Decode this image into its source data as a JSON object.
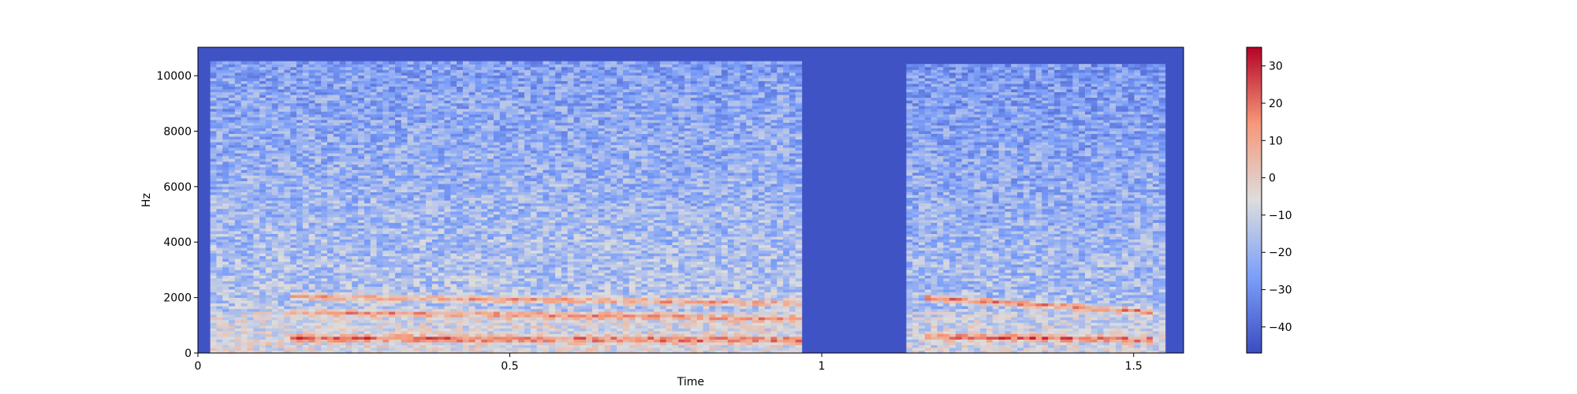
{
  "chart_data": {
    "type": "heatmap",
    "title": "",
    "xlabel": "Time",
    "ylabel": "Hz",
    "xlim": [
      0,
      1.58
    ],
    "ylim": [
      0,
      11025
    ],
    "xticks": [
      {
        "value": 0,
        "label": "0"
      },
      {
        "value": 0.5,
        "label": "0.5"
      },
      {
        "value": 1,
        "label": "1"
      },
      {
        "value": 1.5,
        "label": "1.5"
      }
    ],
    "yticks": [
      {
        "value": 0,
        "label": "0"
      },
      {
        "value": 2000,
        "label": "2000"
      },
      {
        "value": 4000,
        "label": "4000"
      },
      {
        "value": 6000,
        "label": "6000"
      },
      {
        "value": 8000,
        "label": "8000"
      },
      {
        "value": 10000,
        "label": "10000"
      }
    ],
    "colormap": "coolwarm",
    "colorbar": {
      "range": [
        -47,
        35
      ],
      "ticks": [
        {
          "value": 30,
          "label": "30"
        },
        {
          "value": 20,
          "label": "20"
        },
        {
          "value": 10,
          "label": "10"
        },
        {
          "value": 0,
          "label": "0"
        },
        {
          "value": -10,
          "label": "−10"
        },
        {
          "value": -20,
          "label": "−20"
        },
        {
          "value": -30,
          "label": "−30"
        },
        {
          "value": -40,
          "label": "−40"
        }
      ]
    },
    "silent_intervals": [
      [
        0.0,
        0.02
      ],
      [
        0.97,
        1.14
      ],
      [
        1.55,
        1.58
      ]
    ],
    "energy_regions": [
      {
        "t_start": 0.02,
        "t_end": 0.97,
        "f_max": 10500,
        "level": -12
      },
      {
        "t_start": 1.14,
        "t_end": 1.55,
        "f_max": 10400,
        "level": -14
      }
    ],
    "harmonics": [
      {
        "t_start": 0.15,
        "t_end": 0.97,
        "f_start": 550,
        "f_end": 480,
        "level": 22
      },
      {
        "t_start": 0.15,
        "t_end": 0.97,
        "f_start": 1500,
        "f_end": 1250,
        "level": 14
      },
      {
        "t_start": 0.15,
        "t_end": 0.97,
        "f_start": 2050,
        "f_end": 1800,
        "level": 12
      },
      {
        "t_start": 1.17,
        "t_end": 1.53,
        "f_start": 600,
        "f_end": 500,
        "level": 22
      },
      {
        "t_start": 1.17,
        "t_end": 1.53,
        "f_start": 2000,
        "f_end": 1500,
        "level": 18
      }
    ]
  }
}
